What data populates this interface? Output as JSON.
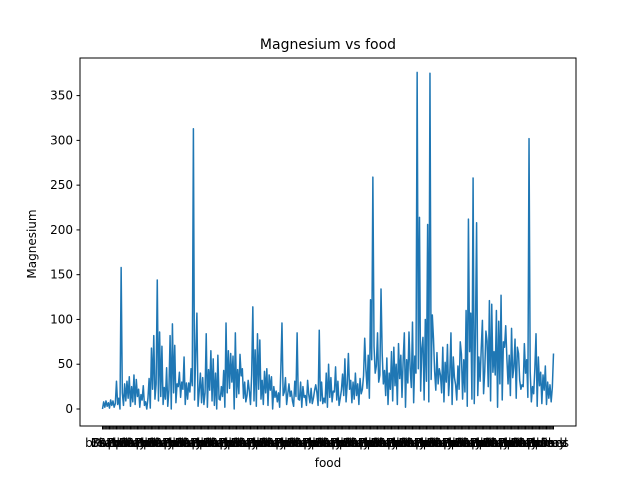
{
  "chart_data": {
    "type": "line",
    "title": "Magnesium vs food",
    "xlabel": "food",
    "ylabel": "Magnesium",
    "ylim": [
      -19,
      392
    ],
    "yticks": [
      0,
      50,
      100,
      150,
      200,
      250,
      300,
      350
    ],
    "grid": false,
    "legend": "none",
    "line_color": "#1f77b4",
    "categories_visible": [
      "bread",
      "Pork",
      "Butter",
      "Cheese",
      "Apple",
      "Peas",
      "Sardines",
      "Barley"
    ],
    "series": [
      {
        "values": [
          0,
          8,
          2,
          9,
          3,
          7,
          1,
          10,
          4,
          9,
          2,
          6,
          31,
          5,
          12,
          0,
          158,
          18,
          4,
          28,
          9,
          31,
          12,
          36,
          3,
          25,
          8,
          38,
          5,
          33,
          14,
          22,
          2,
          16,
          10,
          26,
          4,
          8,
          0,
          12,
          34,
          1,
          68,
          22,
          82,
          11,
          28,
          144,
          9,
          86,
          14,
          70,
          5,
          24,
          11,
          46,
          3,
          21,
          82,
          0,
          95,
          18,
          71,
          7,
          28,
          25,
          41,
          13,
          30,
          22,
          58,
          5,
          29,
          11,
          29,
          19,
          45,
          26,
          313,
          10,
          62,
          107,
          3,
          20,
          40,
          7,
          35,
          5,
          18,
          84,
          2,
          44,
          21,
          65,
          9,
          56,
          4,
          40,
          0,
          60,
          11,
          10,
          25,
          14,
          43,
          2,
          96,
          18,
          65,
          23,
          62,
          30,
          59,
          0,
          85,
          13,
          44,
          17,
          61,
          37,
          45,
          12,
          30,
          8,
          15,
          32,
          20,
          5,
          38,
          114,
          9,
          66,
          3,
          84,
          22,
          77,
          11,
          32,
          5,
          42,
          18,
          45,
          4,
          38,
          21,
          36,
          0,
          25,
          13,
          20,
          8,
          18,
          2,
          43,
          96,
          15,
          19,
          35,
          5,
          17,
          28,
          14,
          20,
          9,
          3,
          31,
          14,
          85,
          11,
          10,
          30,
          2,
          25,
          13,
          15,
          4,
          32,
          16,
          7,
          23,
          6,
          12,
          21,
          27,
          18,
          4,
          88,
          9,
          30,
          6,
          12,
          7,
          40,
          2,
          50,
          13,
          35,
          8,
          20,
          19,
          47,
          10,
          31,
          4,
          12,
          21,
          39,
          15,
          56,
          8,
          28,
          62,
          22,
          32,
          7,
          30,
          11,
          40,
          15,
          28,
          5,
          34,
          17,
          22,
          37,
          79,
          45,
          23,
          60,
          12,
          122,
          55,
          259,
          70,
          40,
          48,
          85,
          30,
          38,
          134,
          62,
          28,
          43,
          15,
          57,
          5,
          40,
          22,
          64,
          9,
          69,
          26,
          50,
          5,
          73,
          34,
          60,
          13,
          55,
          85,
          2,
          55,
          29,
          86,
          45,
          24,
          97,
          7,
          59,
          40,
          376,
          45,
          214,
          20,
          67,
          80,
          10,
          100,
          31,
          206,
          8,
          375,
          33,
          105,
          79,
          42,
          21,
          63,
          28,
          45,
          38,
          18,
          69,
          8,
          52,
          30,
          72,
          15,
          38,
          85,
          5,
          58,
          35,
          27,
          10,
          48,
          22,
          75,
          61,
          11,
          55,
          19,
          110,
          3,
          212,
          64,
          107,
          11,
          258,
          6,
          82,
          208,
          15,
          58,
          31,
          68,
          99,
          17,
          42,
          87,
          76,
          25,
          121,
          9,
          117,
          41,
          64,
          38,
          110,
          2,
          98,
          28,
          127,
          10,
          75,
          69,
          93,
          56,
          28,
          60,
          15,
          90,
          35,
          47,
          78,
          12,
          69,
          62,
          32,
          22,
          27,
          25,
          73,
          40,
          55,
          13,
          302,
          42,
          8,
          25,
          17,
          45,
          84,
          3,
          58,
          26,
          41,
          6,
          38,
          21,
          48,
          5,
          30,
          12,
          27,
          8,
          24,
          62
        ]
      }
    ]
  }
}
